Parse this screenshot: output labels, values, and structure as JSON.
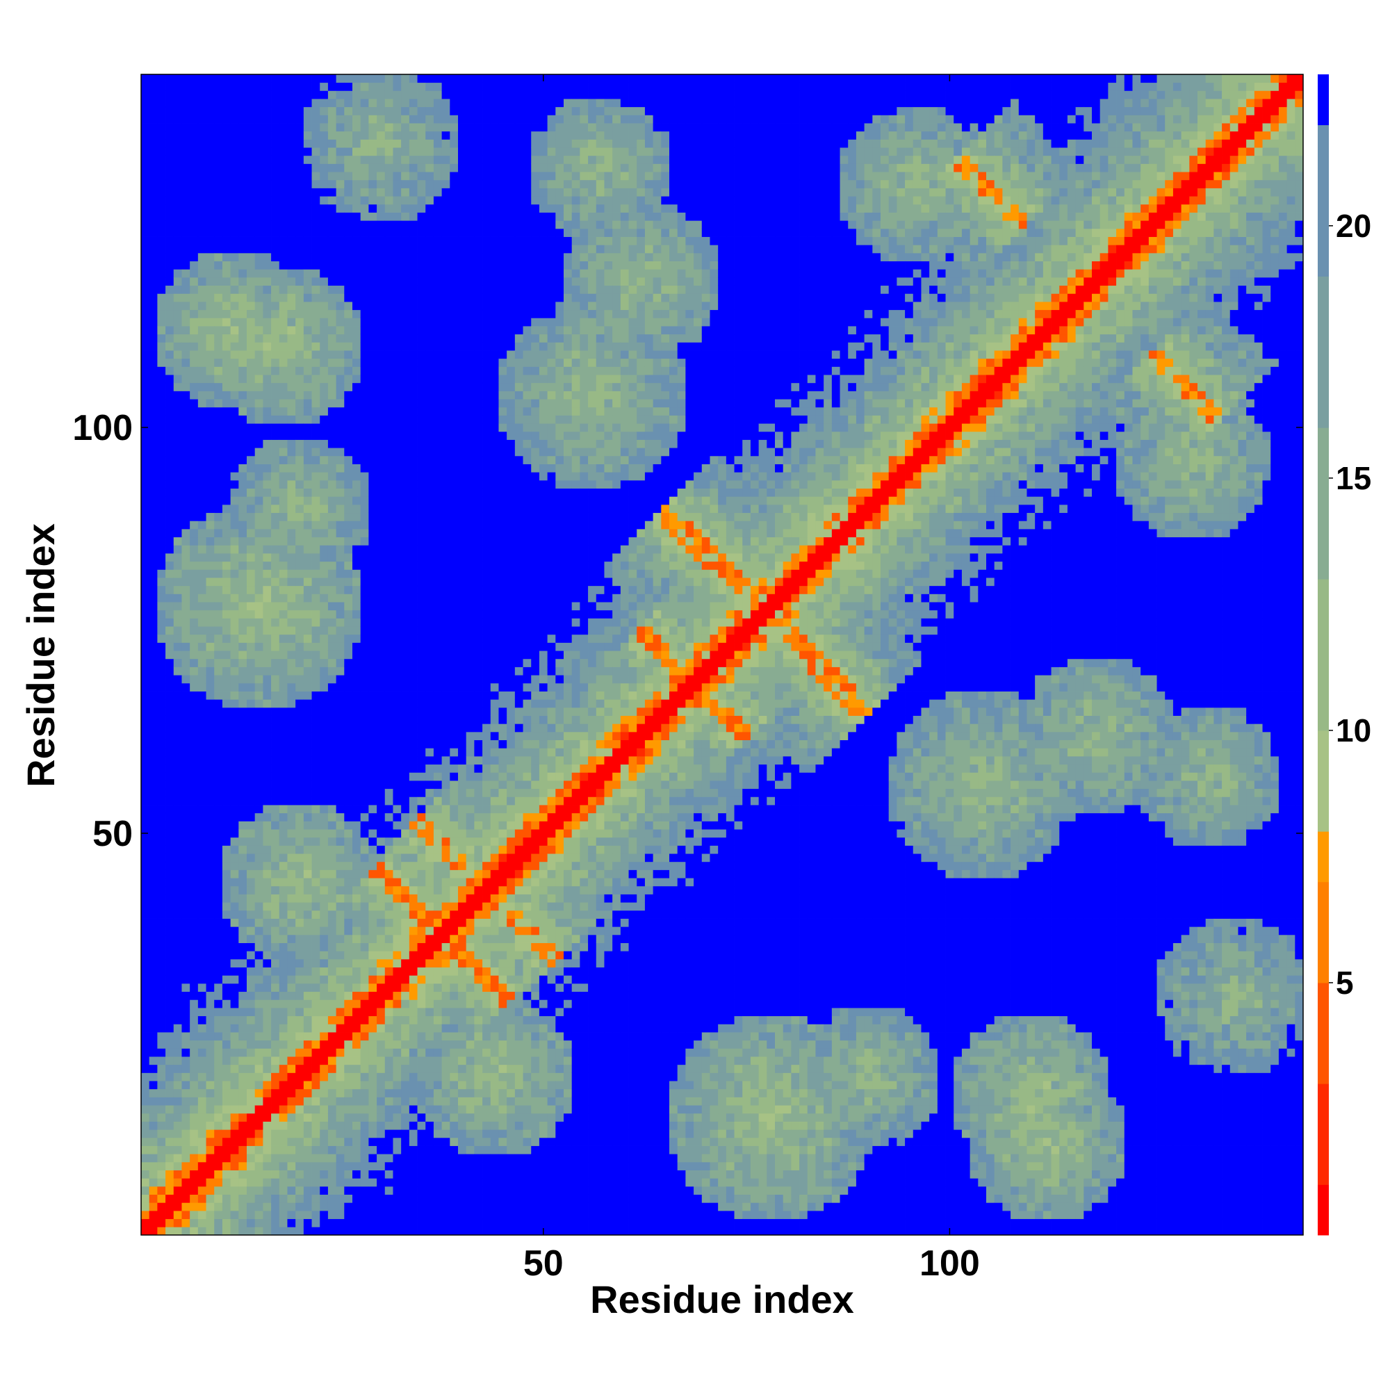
{
  "chart_data": {
    "type": "heatmap",
    "title": "",
    "xlabel": "Residue index",
    "ylabel": "Residue index",
    "n_residues": 143,
    "xlim": [
      1,
      143
    ],
    "ylim": [
      1,
      143
    ],
    "x_ticks": [
      50,
      100
    ],
    "y_ticks": [
      50,
      100
    ],
    "colorbar": {
      "range": [
        0,
        23
      ],
      "ticks": [
        5,
        10,
        15,
        20
      ],
      "levels": [
        {
          "min": 0,
          "max": 1,
          "color": "#ff0000"
        },
        {
          "min": 1,
          "max": 3,
          "color": "#ff2a00"
        },
        {
          "min": 3,
          "max": 5,
          "color": "#ff5500"
        },
        {
          "min": 5,
          "max": 7,
          "color": "#ff8000"
        },
        {
          "min": 7,
          "max": 8,
          "color": "#ff9a00"
        },
        {
          "min": 8,
          "max": 10,
          "color": "#a7c285"
        },
        {
          "min": 10,
          "max": 13,
          "color": "#98b986"
        },
        {
          "min": 13,
          "max": 16,
          "color": "#88ac92"
        },
        {
          "min": 16,
          "max": 19,
          "color": "#7a9fa0"
        },
        {
          "min": 19,
          "max": 22,
          "color": "#6a91b0"
        },
        {
          "min": 22,
          "max": 23,
          "color": "#0000ff"
        }
      ]
    },
    "diagonal_band": {
      "value_on_diagonal": 0.5,
      "value_near_diagonal": 5
    },
    "contact_features": [
      {
        "kind": "antiparallel",
        "center_i": 41,
        "center_j": 34,
        "length": 14,
        "value": 6
      },
      {
        "kind": "antiparallel",
        "center_i": 48,
        "center_j": 38,
        "length": 10,
        "value": 6.5
      },
      {
        "kind": "antiparallel",
        "center_i": 71,
        "center_j": 66,
        "length": 12,
        "value": 6
      },
      {
        "kind": "antiparallel",
        "center_i": 82,
        "center_j": 73,
        "length": 18,
        "value": 6.5
      },
      {
        "kind": "antiparallel",
        "center_i": 86,
        "center_j": 68,
        "length": 10,
        "value": 6.5
      },
      {
        "kind": "antiparallel",
        "center_i": 129,
        "center_j": 105,
        "length": 12,
        "value": 7
      },
      {
        "kind": "blob",
        "center_i": 15,
        "center_j": 78,
        "radius": 13,
        "value": 11
      },
      {
        "kind": "blob",
        "center_i": 12,
        "center_j": 112,
        "radius": 10,
        "value": 11
      },
      {
        "kind": "blob",
        "center_i": 44,
        "center_j": 20,
        "radius": 10,
        "value": 11
      },
      {
        "kind": "blob",
        "center_i": 110,
        "center_j": 18,
        "radius": 10,
        "value": 11
      },
      {
        "kind": "blob",
        "center_i": 118,
        "center_j": 62,
        "radius": 10,
        "value": 12
      },
      {
        "kind": "blob",
        "center_i": 135,
        "center_j": 30,
        "radius": 10,
        "value": 13
      },
      {
        "kind": "blob",
        "center_i": 56,
        "center_j": 104,
        "radius": 12,
        "value": 12
      },
      {
        "kind": "blob",
        "center_i": 57,
        "center_j": 132,
        "radius": 9,
        "value": 12
      },
      {
        "kind": "blob",
        "center_i": 96,
        "center_j": 130,
        "radius": 10,
        "value": 12
      },
      {
        "kind": "blob",
        "center_i": 90,
        "center_j": 20,
        "radius": 9,
        "value": 12
      }
    ]
  }
}
